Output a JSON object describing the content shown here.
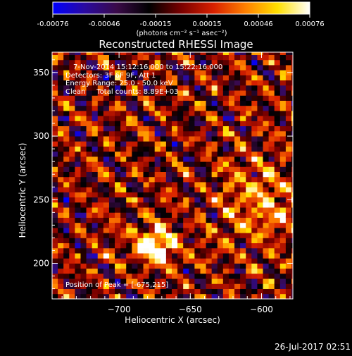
{
  "colorbar": {
    "ticks": [
      "-0.00076",
      "-0.00046",
      "-0.00015",
      "0.00015",
      "0.00046",
      "0.00076"
    ],
    "units": "(photons cm⁻² s⁻¹ asec⁻²)",
    "range": [
      -0.00076,
      0.00076
    ],
    "colormap": [
      "#0000ff",
      "#2a0aa0",
      "#3a0a48",
      "#000000",
      "#7a0000",
      "#d82000",
      "#ff8000",
      "#ffe000",
      "#ffffff"
    ]
  },
  "chart_data": {
    "type": "heatmap",
    "title": "Reconstructed RHESSI Image",
    "xlabel": "Heliocentric X (arcsec)",
    "ylabel": "Heliocentric Y (arcsec)",
    "xlim": [
      -747,
      -578
    ],
    "ylim": [
      172,
      366
    ],
    "xticks": [
      {
        "value": -700,
        "label": "−700"
      },
      {
        "value": -650,
        "label": "−650"
      },
      {
        "value": -600,
        "label": "−600"
      }
    ],
    "yticks": [
      {
        "value": 200,
        "label": "200"
      },
      {
        "value": 250,
        "label": "250"
      },
      {
        "value": 300,
        "label": "300"
      },
      {
        "value": 350,
        "label": "350"
      }
    ],
    "peak": [
      -675,
      215
    ],
    "annotations": [
      "7-Nov-2014 15:12:16.000 to 15:22:16.000",
      "Detectors: 3F 6F 9F, Att 1",
      "Energy Range: 25.0 - 50.0 keV",
      "Clean     Total counts: 8.89E+03"
    ],
    "peak_label": "Position of Peak = [-675,215]"
  },
  "timestamp": "26-Jul-2017 02:51"
}
